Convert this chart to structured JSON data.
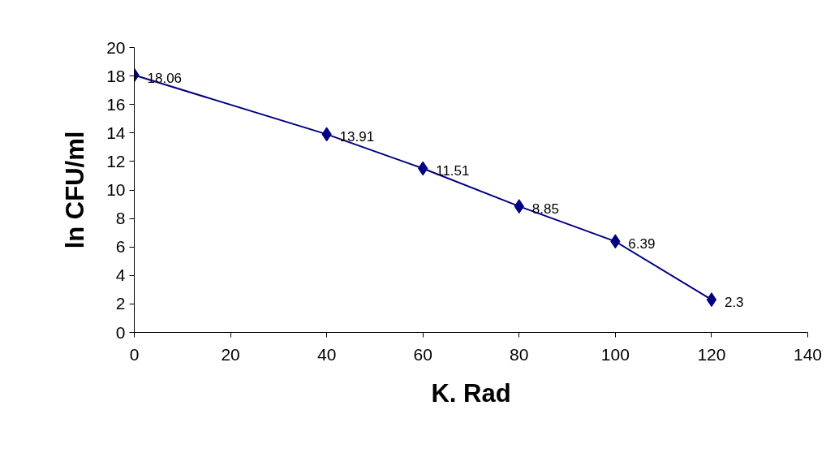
{
  "chart_data": {
    "type": "line",
    "xlabel": "K. Rad",
    "ylabel": "ln CFU/ml",
    "x": [
      0,
      40,
      60,
      80,
      100,
      120
    ],
    "series": [
      {
        "color": "#000080",
        "values": [
          18.06,
          13.91,
          11.51,
          8.85,
          6.39,
          2.3
        ]
      }
    ],
    "xlim": [
      0,
      140
    ],
    "ylim": [
      0,
      20
    ],
    "xticks": [
      0,
      20,
      40,
      60,
      80,
      100,
      120,
      140
    ],
    "yticks": [
      0,
      2,
      4,
      6,
      8,
      10,
      12,
      14,
      16,
      18,
      20
    ],
    "marker": "diamond",
    "line_style": "solid",
    "data_labels": true,
    "grid": false
  }
}
